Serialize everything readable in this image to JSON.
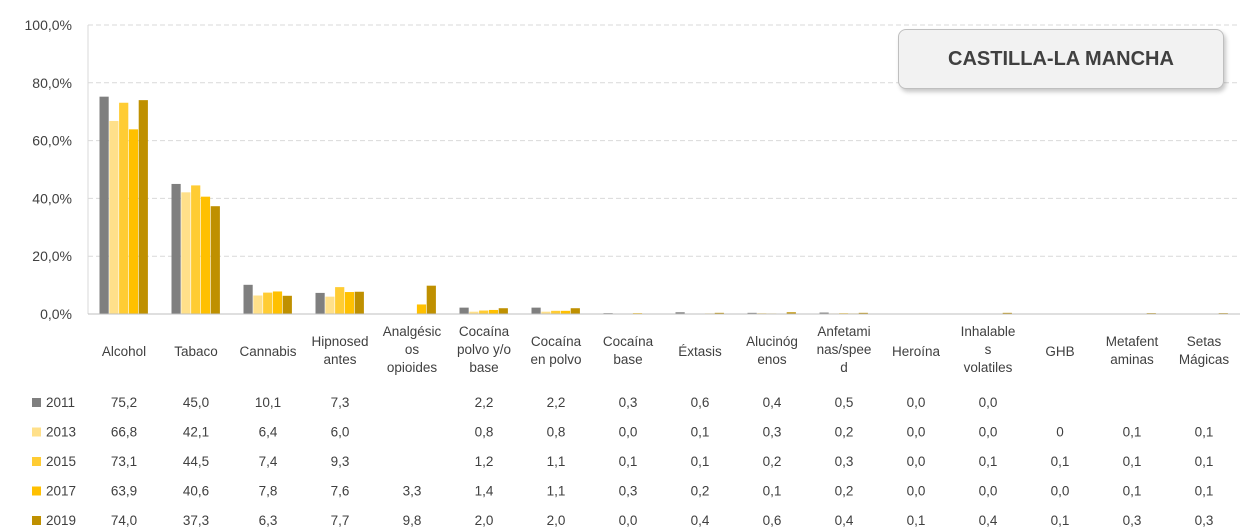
{
  "chart_data": {
    "type": "bar",
    "title": "CASTILLA-LA MANCHA",
    "ylim": [
      0,
      100
    ],
    "y_ticks": [
      "0,0%",
      "20,0%",
      "40,0%",
      "60,0%",
      "80,0%",
      "100,0%"
    ],
    "grid": "horizontal dashed",
    "legend": "data table below chart",
    "categories": [
      [
        "Alcohol"
      ],
      [
        "Tabaco"
      ],
      [
        "Cannabis"
      ],
      [
        "Hipnosed",
        "antes"
      ],
      [
        "Analgésic",
        "os",
        "opioides"
      ],
      [
        "Cocaína",
        "polvo y/o",
        "base"
      ],
      [
        "Cocaína",
        "en polvo"
      ],
      [
        "Cocaína",
        "base"
      ],
      [
        "Éxtasis"
      ],
      [
        "Alucinóg",
        "enos"
      ],
      [
        "Anfetami",
        "nas/spee",
        "d"
      ],
      [
        "Heroína"
      ],
      [
        "Inhalable",
        "s",
        "volatiles"
      ],
      [
        "GHB"
      ],
      [
        "Metafent",
        "aminas"
      ],
      [
        "Setas",
        "Mágicas"
      ]
    ],
    "series": [
      {
        "name": "2011",
        "color": "#7f7f7f",
        "values": [
          75.2,
          45.0,
          10.1,
          7.3,
          null,
          2.2,
          2.2,
          0.3,
          0.6,
          0.4,
          0.5,
          0.0,
          0.0,
          null,
          null,
          null
        ],
        "labels": [
          "75,2",
          "45,0",
          "10,1",
          "7,3",
          "",
          "2,2",
          "2,2",
          "0,3",
          "0,6",
          "0,4",
          "0,5",
          "0,0",
          "0,0",
          "",
          "",
          ""
        ]
      },
      {
        "name": "2013",
        "color": "#ffe08a",
        "values": [
          66.8,
          42.1,
          6.4,
          6.0,
          null,
          0.8,
          0.8,
          0.0,
          0.1,
          0.3,
          0.2,
          0.0,
          0.0,
          0,
          0.1,
          0.1
        ],
        "labels": [
          "66,8",
          "42,1",
          "6,4",
          "6,0",
          "",
          "0,8",
          "0,8",
          "0,0",
          "0,1",
          "0,3",
          "0,2",
          "0,0",
          "0,0",
          "0",
          "0,1",
          "0,1"
        ]
      },
      {
        "name": "2015",
        "color": "#ffcc33",
        "values": [
          73.1,
          44.5,
          7.4,
          9.3,
          null,
          1.2,
          1.1,
          0.1,
          0.1,
          0.2,
          0.3,
          0.0,
          0.1,
          0.1,
          0.1,
          0.1
        ],
        "labels": [
          "73,1",
          "44,5",
          "7,4",
          "9,3",
          "",
          "1,2",
          "1,1",
          "0,1",
          "0,1",
          "0,2",
          "0,3",
          "0,0",
          "0,1",
          "0,1",
          "0,1",
          "0,1"
        ]
      },
      {
        "name": "2017",
        "color": "#ffc000",
        "values": [
          63.9,
          40.6,
          7.8,
          7.6,
          3.3,
          1.4,
          1.1,
          0.3,
          0.2,
          0.1,
          0.2,
          0.0,
          0.0,
          0.0,
          0.1,
          0.1
        ],
        "labels": [
          "63,9",
          "40,6",
          "7,8",
          "7,6",
          "3,3",
          "1,4",
          "1,1",
          "0,3",
          "0,2",
          "0,1",
          "0,2",
          "0,0",
          "0,0",
          "0,0",
          "0,1",
          "0,1"
        ]
      },
      {
        "name": "2019",
        "color": "#bf9000",
        "values": [
          74.0,
          37.3,
          6.3,
          7.7,
          9.8,
          2.0,
          2.0,
          0.0,
          0.4,
          0.6,
          0.4,
          0.1,
          0.4,
          0.1,
          0.3,
          0.3
        ],
        "labels": [
          "74,0",
          "37,3",
          "6,3",
          "7,7",
          "9,8",
          "2,0",
          "2,0",
          "0,0",
          "0,4",
          "0,6",
          "0,4",
          "0,1",
          "0,4",
          "0,1",
          "0,3",
          "0,3"
        ]
      }
    ]
  }
}
